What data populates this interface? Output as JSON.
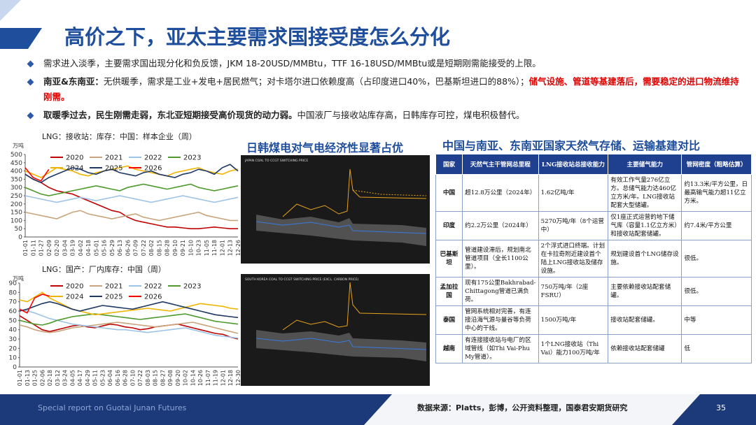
{
  "title": "高价之下，亚太主要需求国接受度怎么分化",
  "bullets": [
    {
      "segments": [
        {
          "text": "需求进入淡季，主要需求国出现分化和负反馈，JKM 18-20USD/MMBtu，TTF 16-18USD/MMBtu或是短期刚需能接受的上限。",
          "style": "normal"
        }
      ]
    },
    {
      "segments": [
        {
          "text": "南亚&东南亚：",
          "style": "bold"
        },
        {
          "text": "无供暖季，需求是工业+发电+居民燃气；对卡塔尔进口依赖度高（占印度进口40%，巴基斯坦进口的88%）；",
          "style": "normal"
        },
        {
          "text": "储气设施、管道等基建落后，需要稳定的进口物流维持刚需。",
          "style": "red"
        }
      ]
    },
    {
      "segments": [
        {
          "text": "取暖季过去，民生刚需走弱，东北亚短期接受高价现货的动力弱。",
          "style": "bold"
        },
        {
          "text": "中国液厂与接收站库存高，日韩库存可控，煤电积极替代。",
          "style": "normal"
        }
      ]
    }
  ],
  "section_titles": [
    "日韩煤电对气电经济性显著占优",
    "中国与南亚、东南亚国家天然气存储、运输基建对比"
  ],
  "screenshots": [
    {
      "title": "JAPAN COAL TO CCGT SWITCHING PRICE"
    },
    {
      "title": "SOUTH KOREA COAL TO CCGT SWITCHING PRICE (EXCL. CARBON PRICE)"
    }
  ],
  "chart_data": [
    {
      "type": "line",
      "title": "LNG：接收站：库存：中国：样本企业（周）",
      "unit": "万吨",
      "categories": [
        "01-01",
        "01-11",
        "01-27",
        "02-09",
        "02-20",
        "03-04",
        "03-19",
        "04-02",
        "04-18",
        "05-01",
        "05-16",
        "05-29",
        "06-13",
        "06-26",
        "07-09",
        "07-22",
        "08-02",
        "08-15",
        "08-28",
        "09-10",
        "09-21",
        "10-10",
        "10-23",
        "11-05",
        "11-18",
        "12-01",
        "12-13",
        "12-26"
      ],
      "ylim": [
        0,
        500
      ],
      "yticks": [
        0,
        50,
        100,
        150,
        200,
        250,
        300,
        350,
        400,
        450,
        500
      ],
      "series": [
        {
          "name": "2020",
          "color": "#c00000",
          "values": [
            380,
            350,
            330,
            300,
            280,
            270,
            260,
            240,
            220,
            200,
            180,
            160,
            150,
            120,
            100,
            90,
            80,
            70,
            60,
            60,
            55,
            50,
            50,
            55,
            60,
            55,
            50,
            50
          ]
        },
        {
          "name": "2021",
          "color": "#c9a47c",
          "values": [
            150,
            140,
            130,
            120,
            110,
            130,
            150,
            160,
            140,
            130,
            120,
            110,
            120,
            130,
            140,
            120,
            110,
            100,
            110,
            120,
            130,
            140,
            150,
            130,
            120,
            110,
            100,
            100
          ]
        },
        {
          "name": "2022",
          "color": "#9dc3e6",
          "values": [
            250,
            240,
            230,
            220,
            210,
            220,
            230,
            240,
            230,
            220,
            230,
            240,
            250,
            240,
            230,
            220,
            210,
            220,
            230,
            240,
            250,
            240,
            230,
            220,
            210,
            220,
            230,
            240
          ]
        },
        {
          "name": "2023",
          "color": "#4e9a2e",
          "values": [
            300,
            280,
            260,
            250,
            260,
            270,
            280,
            290,
            300,
            310,
            300,
            290,
            280,
            300,
            310,
            320,
            310,
            300,
            290,
            300,
            310,
            320,
            300,
            290,
            280,
            290,
            300,
            310
          ]
        },
        {
          "name": "2024",
          "color": "#f0b400",
          "values": [
            400,
            380,
            360,
            390,
            420,
            410,
            400,
            380,
            370,
            390,
            400,
            410,
            420,
            430,
            410,
            400,
            390,
            380,
            370,
            390,
            400,
            410,
            420,
            400,
            390,
            380,
            400,
            410
          ]
        },
        {
          "name": "2025",
          "color": "#1f3864",
          "values": [
            380,
            350,
            330,
            360,
            380,
            400,
            420,
            410,
            390,
            380,
            400,
            410,
            390,
            380,
            370,
            390,
            400,
            380,
            370,
            360,
            380,
            390,
            410,
            400,
            380,
            420,
            440,
            400
          ]
        },
        {
          "name": "2026",
          "color": "#ff0000",
          "values": [
            420,
            360,
            340,
            410,
            null,
            null,
            null,
            null,
            null,
            null,
            null,
            null,
            null,
            null,
            null,
            null,
            null,
            null,
            null,
            null,
            null,
            null,
            null,
            null,
            null,
            null,
            null,
            null
          ]
        }
      ]
    },
    {
      "type": "line",
      "title": "LNG：国产：厂内库存：中国（周）",
      "unit": "万吨",
      "categories": [
        "01-01",
        "01-13",
        "01-25",
        "02-06",
        "02-18",
        "03-12",
        "03-24",
        "04-05",
        "04-17",
        "04-29",
        "05-11",
        "05-23",
        "06-04",
        "06-16",
        "06-28",
        "07-10",
        "07-22",
        "08-03",
        "08-15",
        "08-27",
        "09-08",
        "09-20",
        "10-02",
        "10-14",
        "10-26",
        "11-07",
        "11-19",
        "12-01",
        "12-18",
        "12-30"
      ],
      "ylim": [
        0,
        90
      ],
      "yticks": [
        0,
        10,
        20,
        30,
        40,
        50,
        60,
        70,
        80,
        90
      ],
      "series": [
        {
          "name": "2020",
          "color": "#c00000",
          "values": [
            55,
            50,
            45,
            40,
            38,
            40,
            42,
            44,
            45,
            43,
            42,
            44,
            46,
            45,
            43,
            42,
            40,
            41,
            43,
            44,
            45,
            46,
            44,
            42,
            40,
            38,
            36,
            35,
            32,
            30
          ]
        },
        {
          "name": "2021",
          "color": "#c9a47c",
          "values": [
            45,
            43,
            40,
            38,
            37,
            38,
            40,
            42,
            43,
            44,
            45,
            46,
            47,
            48,
            47,
            46,
            45,
            44,
            43,
            44,
            45,
            46,
            47,
            48,
            46,
            44,
            42,
            40,
            38,
            36
          ]
        },
        {
          "name": "2022",
          "color": "#9dc3e6",
          "values": [
            62,
            60,
            58,
            55,
            52,
            50,
            48,
            46,
            45,
            44,
            43,
            42,
            41,
            40,
            40,
            39,
            38,
            37,
            38,
            39,
            40,
            41,
            42,
            40,
            38,
            36,
            34,
            33,
            32,
            31
          ]
        },
        {
          "name": "2023",
          "color": "#4e9a2e",
          "values": [
            50,
            48,
            46,
            45,
            47,
            50,
            52,
            54,
            55,
            56,
            57,
            56,
            55,
            54,
            53,
            52,
            51,
            52,
            53,
            54,
            55,
            56,
            57,
            55,
            53,
            51,
            49,
            48,
            47,
            46
          ]
        },
        {
          "name": "2024",
          "color": "#f0b400",
          "values": [
            72,
            70,
            75,
            80,
            74,
            70,
            66,
            62,
            60,
            58,
            56,
            57,
            58,
            59,
            60,
            61,
            62,
            63,
            62,
            61,
            60,
            62,
            64,
            66,
            68,
            67,
            66,
            65,
            63,
            62
          ]
        },
        {
          "name": "2025",
          "color": "#1f3864",
          "values": [
            60,
            62,
            65,
            68,
            70,
            68,
            65,
            62,
            60,
            62,
            64,
            66,
            65,
            64,
            63,
            62,
            64,
            66,
            68,
            70,
            68,
            66,
            64,
            62,
            60,
            58,
            56,
            55,
            54,
            53
          ]
        },
        {
          "name": "2026",
          "color": "#ff0000",
          "values": [
            62,
            58,
            74,
            78,
            76,
            null,
            null,
            null,
            null,
            null,
            null,
            null,
            null,
            null,
            null,
            null,
            null,
            null,
            null,
            null,
            null,
            null,
            null,
            null,
            null,
            null,
            null,
            null,
            null,
            null
          ]
        }
      ]
    }
  ],
  "table": {
    "header": [
      "国家",
      "天然气主干管网总里程",
      "LNG接收站总接收能力",
      "主要储气能力",
      "管网密度（粗略估算）"
    ],
    "rows": [
      [
        "中国",
        "超12.8万公里（2024年）",
        "1.62亿吨/年",
        "有效工作气量276亿立方。总储气能力达460亿立方米/年。LNG接收站配套大型储罐。",
        "约13.3米/平方公里，日最高输气能力超11亿立方米。"
      ],
      [
        "印度",
        "约2.2万公里（2024年）",
        "5270万吨/年（8个运营中）",
        "仅1座正式运营的地下储气库（容量1.1亿立方米）和接收站配套储罐。",
        "约7.4米/平方公里"
      ],
      [
        "巴基斯坦",
        "管道建设滞后，规划南北管道项目（全长1100公里）。",
        "2个浮式进口终端。计划在卡拉奇附近建设首个陆上LNG接收站及储存设施。",
        "规划建设首个LNG储存设施。",
        "很低。"
      ],
      [
        "孟加拉国",
        "现有175公里Bakhrabad-Chittagong管道已满负荷。",
        "750万吨/年（2座FSRU）",
        "主要依赖接收站配套储罐。",
        "很低。"
      ],
      [
        "泰国",
        "管网系统相对完善，有连接沿海气源与曼谷等负荷中心的干线。",
        "1500万吨/年",
        "接收站配套储罐。",
        "中等"
      ],
      [
        "越南",
        "有连接接收站与电厂的区域管线（如Thi Vai-Phu My管道）。",
        "1个LNG接收站（Thi Vai）能力100万吨/年",
        "依赖接收站配套储罐",
        "低"
      ]
    ]
  },
  "footer": {
    "left": "Special report on Guotai Junan Futures",
    "source": "数据来源：Platts，彭博，公开资料整理，国泰君安期货研究",
    "page": "35"
  }
}
